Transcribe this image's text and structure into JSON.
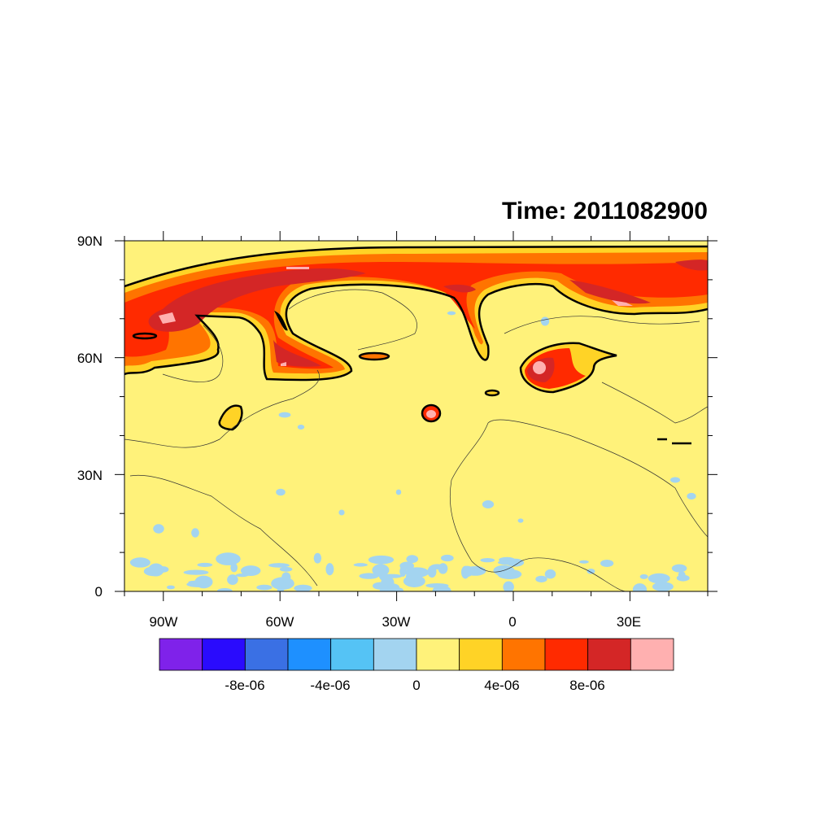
{
  "title": "Time: 2011082900",
  "chart_data": {
    "type": "contour map",
    "title": "Time: 2011082900",
    "projection": "cylindrical equidistant",
    "lon_range": [
      -100,
      50
    ],
    "lat_range": [
      0,
      90
    ],
    "x_ticks": [
      "90W",
      "60W",
      "30W",
      "0",
      "30E"
    ],
    "y_ticks": [
      "90N",
      "60N",
      "30N",
      "0"
    ],
    "colorbar": {
      "levels": [
        -1e-05,
        -8e-06,
        -6e-06,
        -4e-06,
        -2e-06,
        0,
        2e-06,
        4e-06,
        6e-06,
        8e-06,
        1e-05
      ],
      "labels": [
        "-8e-06",
        "-4e-06",
        "0",
        "4e-06",
        "8e-06"
      ],
      "colors": [
        "#7f22ea",
        "#2a0bfd",
        "#3a70e4",
        "#1e90ff",
        "#55c3f5",
        "#a3d4f0",
        "#fff27a",
        "#ffd326",
        "#ff7400",
        "#ff2a00",
        "#d42626",
        "#ffb0b0"
      ],
      "orientation": "horizontal",
      "placement": "bottom"
    },
    "features": [
      "positive band over high latitudes (60N-88N)",
      "blob over Europe near 55N 10E",
      "small maxima near 45N 20W and 45N 70W"
    ]
  }
}
